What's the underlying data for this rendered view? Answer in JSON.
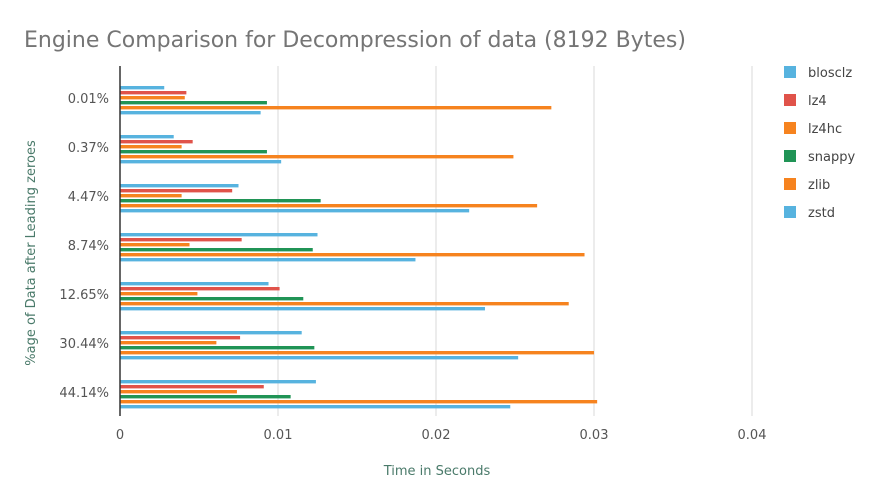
{
  "chart_data": {
    "type": "bar",
    "orientation": "horizontal",
    "title": "Engine Comparison for Decompression of data (8192 Bytes)",
    "xlabel": "Time in Seconds",
    "ylabel": "%age of Data after Leading zeroes",
    "xlim": [
      0,
      0.04
    ],
    "x_ticks": [
      "0",
      "0.01",
      "0.02",
      "0.03",
      "0.04"
    ],
    "x_tick_values": [
      0,
      0.01,
      0.02,
      0.03,
      0.04
    ],
    "grid": true,
    "legend_position": "right",
    "categories": [
      "0.01%",
      "0.37%",
      "4.47%",
      "8.74%",
      "12.65%",
      "30.44%",
      "44.14%"
    ],
    "series": [
      {
        "name": "blosclz",
        "color": "#57b3df",
        "values": [
          0.0028,
          0.0034,
          0.0075,
          0.0125,
          0.0094,
          0.0115,
          0.0124
        ]
      },
      {
        "name": "lz4",
        "color": "#e0534a",
        "values": [
          0.0042,
          0.0046,
          0.0071,
          0.0077,
          0.0101,
          0.0076,
          0.0091
        ]
      },
      {
        "name": "lz4hc",
        "color": "#f6831f",
        "values": [
          0.0041,
          0.0039,
          0.0039,
          0.0044,
          0.0049,
          0.0061,
          0.0074
        ]
      },
      {
        "name": "snappy",
        "color": "#209456",
        "values": [
          0.0093,
          0.0093,
          0.0127,
          0.0122,
          0.0116,
          0.0123,
          0.0108
        ]
      },
      {
        "name": "zlib",
        "color": "#f6831f",
        "values": [
          0.0273,
          0.0249,
          0.0264,
          0.0294,
          0.0284,
          0.03,
          0.0302
        ]
      },
      {
        "name": "zstd",
        "color": "#57b3df",
        "values": [
          0.0089,
          0.0102,
          0.0221,
          0.0187,
          0.0231,
          0.0252,
          0.0247
        ]
      }
    ]
  }
}
